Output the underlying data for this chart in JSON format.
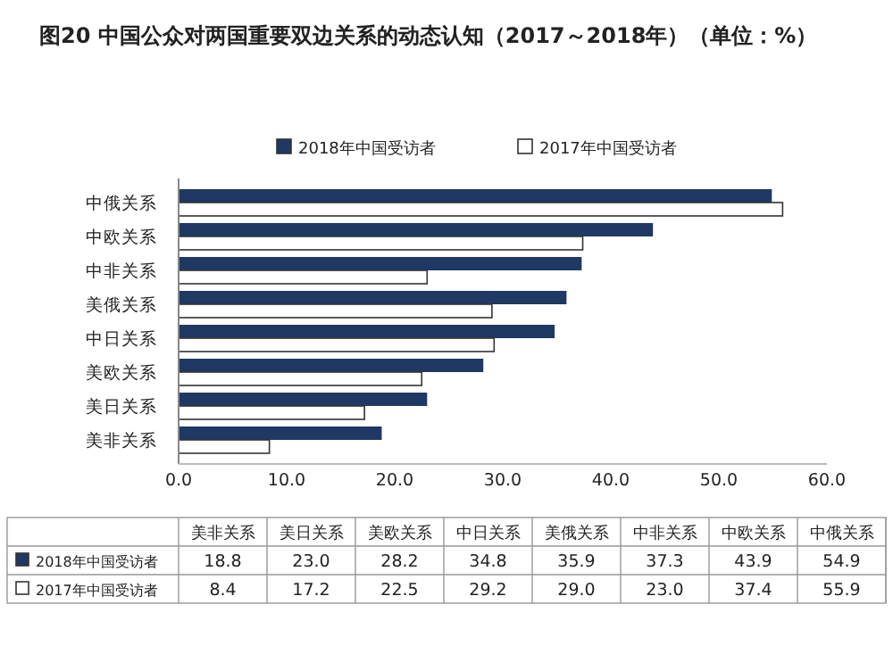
{
  "chart_data": [
    {
      "type": "bar",
      "orientation": "horizontal",
      "title": "图20 中国公众对两国重要双边关系的动态认知（2017～2018年）（单位：%）",
      "categories": [
        "中俄关系",
        "中欧关系",
        "中非关系",
        "美俄关系",
        "中日关系",
        "美欧关系",
        "美日关系",
        "美非关系"
      ],
      "series": [
        {
          "name": "2018年中国受访者",
          "color": "#1f3864",
          "values": [
            54.9,
            43.9,
            37.3,
            35.9,
            34.8,
            28.2,
            23.0,
            18.8
          ]
        },
        {
          "name": "2017年中国受访者",
          "color": "#ffffff",
          "values": [
            55.9,
            37.4,
            23.0,
            29.0,
            29.2,
            22.5,
            17.2,
            8.4
          ]
        }
      ],
      "xlim": [
        0,
        60
      ],
      "xticks": [
        {
          "value": 0,
          "label": "0.0"
        },
        {
          "value": 10,
          "label": "10.0"
        },
        {
          "value": 20,
          "label": "20.0"
        },
        {
          "value": 30,
          "label": "30.0"
        },
        {
          "value": 40,
          "label": "40.0"
        },
        {
          "value": 50,
          "label": "50.0"
        },
        {
          "value": 60,
          "label": "60.0"
        }
      ],
      "legend": "top",
      "grid": false
    },
    {
      "type": "other",
      "categories": [
        "美非关系",
        "美日关系",
        "美欧关系",
        "中日关系",
        "美俄关系",
        "中非关系",
        "中欧关系",
        "中俄关系"
      ],
      "series": [
        {
          "name": "2018年中国受访者",
          "color": "#1f3864",
          "values": [
            18.8,
            23.0,
            28.2,
            34.8,
            35.9,
            37.3,
            43.9,
            54.9
          ],
          "value_labels": [
            "18.8",
            "23.0",
            "28.2",
            "34.8",
            "35.9",
            "37.3",
            "43.9",
            "54.9"
          ]
        },
        {
          "name": "2017年中国受访者",
          "color": "#ffffff",
          "values": [
            8.4,
            17.2,
            22.5,
            29.2,
            29.0,
            23.0,
            37.4,
            55.9
          ],
          "value_labels": [
            "8.4",
            "17.2",
            "22.5",
            "29.2",
            "29.0",
            "23.0",
            "37.4",
            "55.9"
          ]
        }
      ]
    }
  ]
}
